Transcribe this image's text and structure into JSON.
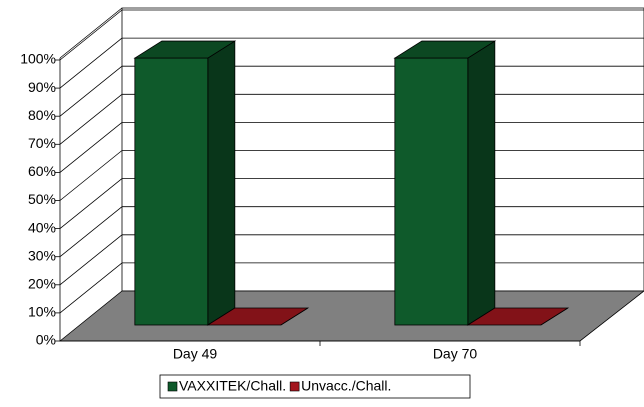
{
  "chart_data": {
    "type": "bar3d",
    "categories": [
      "Day 49",
      "Day 70"
    ],
    "series": [
      {
        "name": "VAXXITEK/Chall.",
        "color": "#0f5a2b",
        "values": [
          95,
          95
        ]
      },
      {
        "name": "Unvacc./Chall.",
        "color": "#a3161e",
        "values": [
          0,
          0
        ]
      }
    ],
    "ylim": [
      0,
      100
    ],
    "yticks": [
      {
        "value": 0,
        "label": "0%"
      },
      {
        "value": 10,
        "label": "10%"
      },
      {
        "value": 20,
        "label": "20%"
      },
      {
        "value": 30,
        "label": "30%"
      },
      {
        "value": 40,
        "label": "40%"
      },
      {
        "value": 50,
        "label": "50%"
      },
      {
        "value": 60,
        "label": "60%"
      },
      {
        "value": 70,
        "label": "70%"
      },
      {
        "value": 80,
        "label": "80%"
      },
      {
        "value": 90,
        "label": "90%"
      },
      {
        "value": 100,
        "label": "100%"
      }
    ],
    "grid": true,
    "legend": "bottom"
  }
}
